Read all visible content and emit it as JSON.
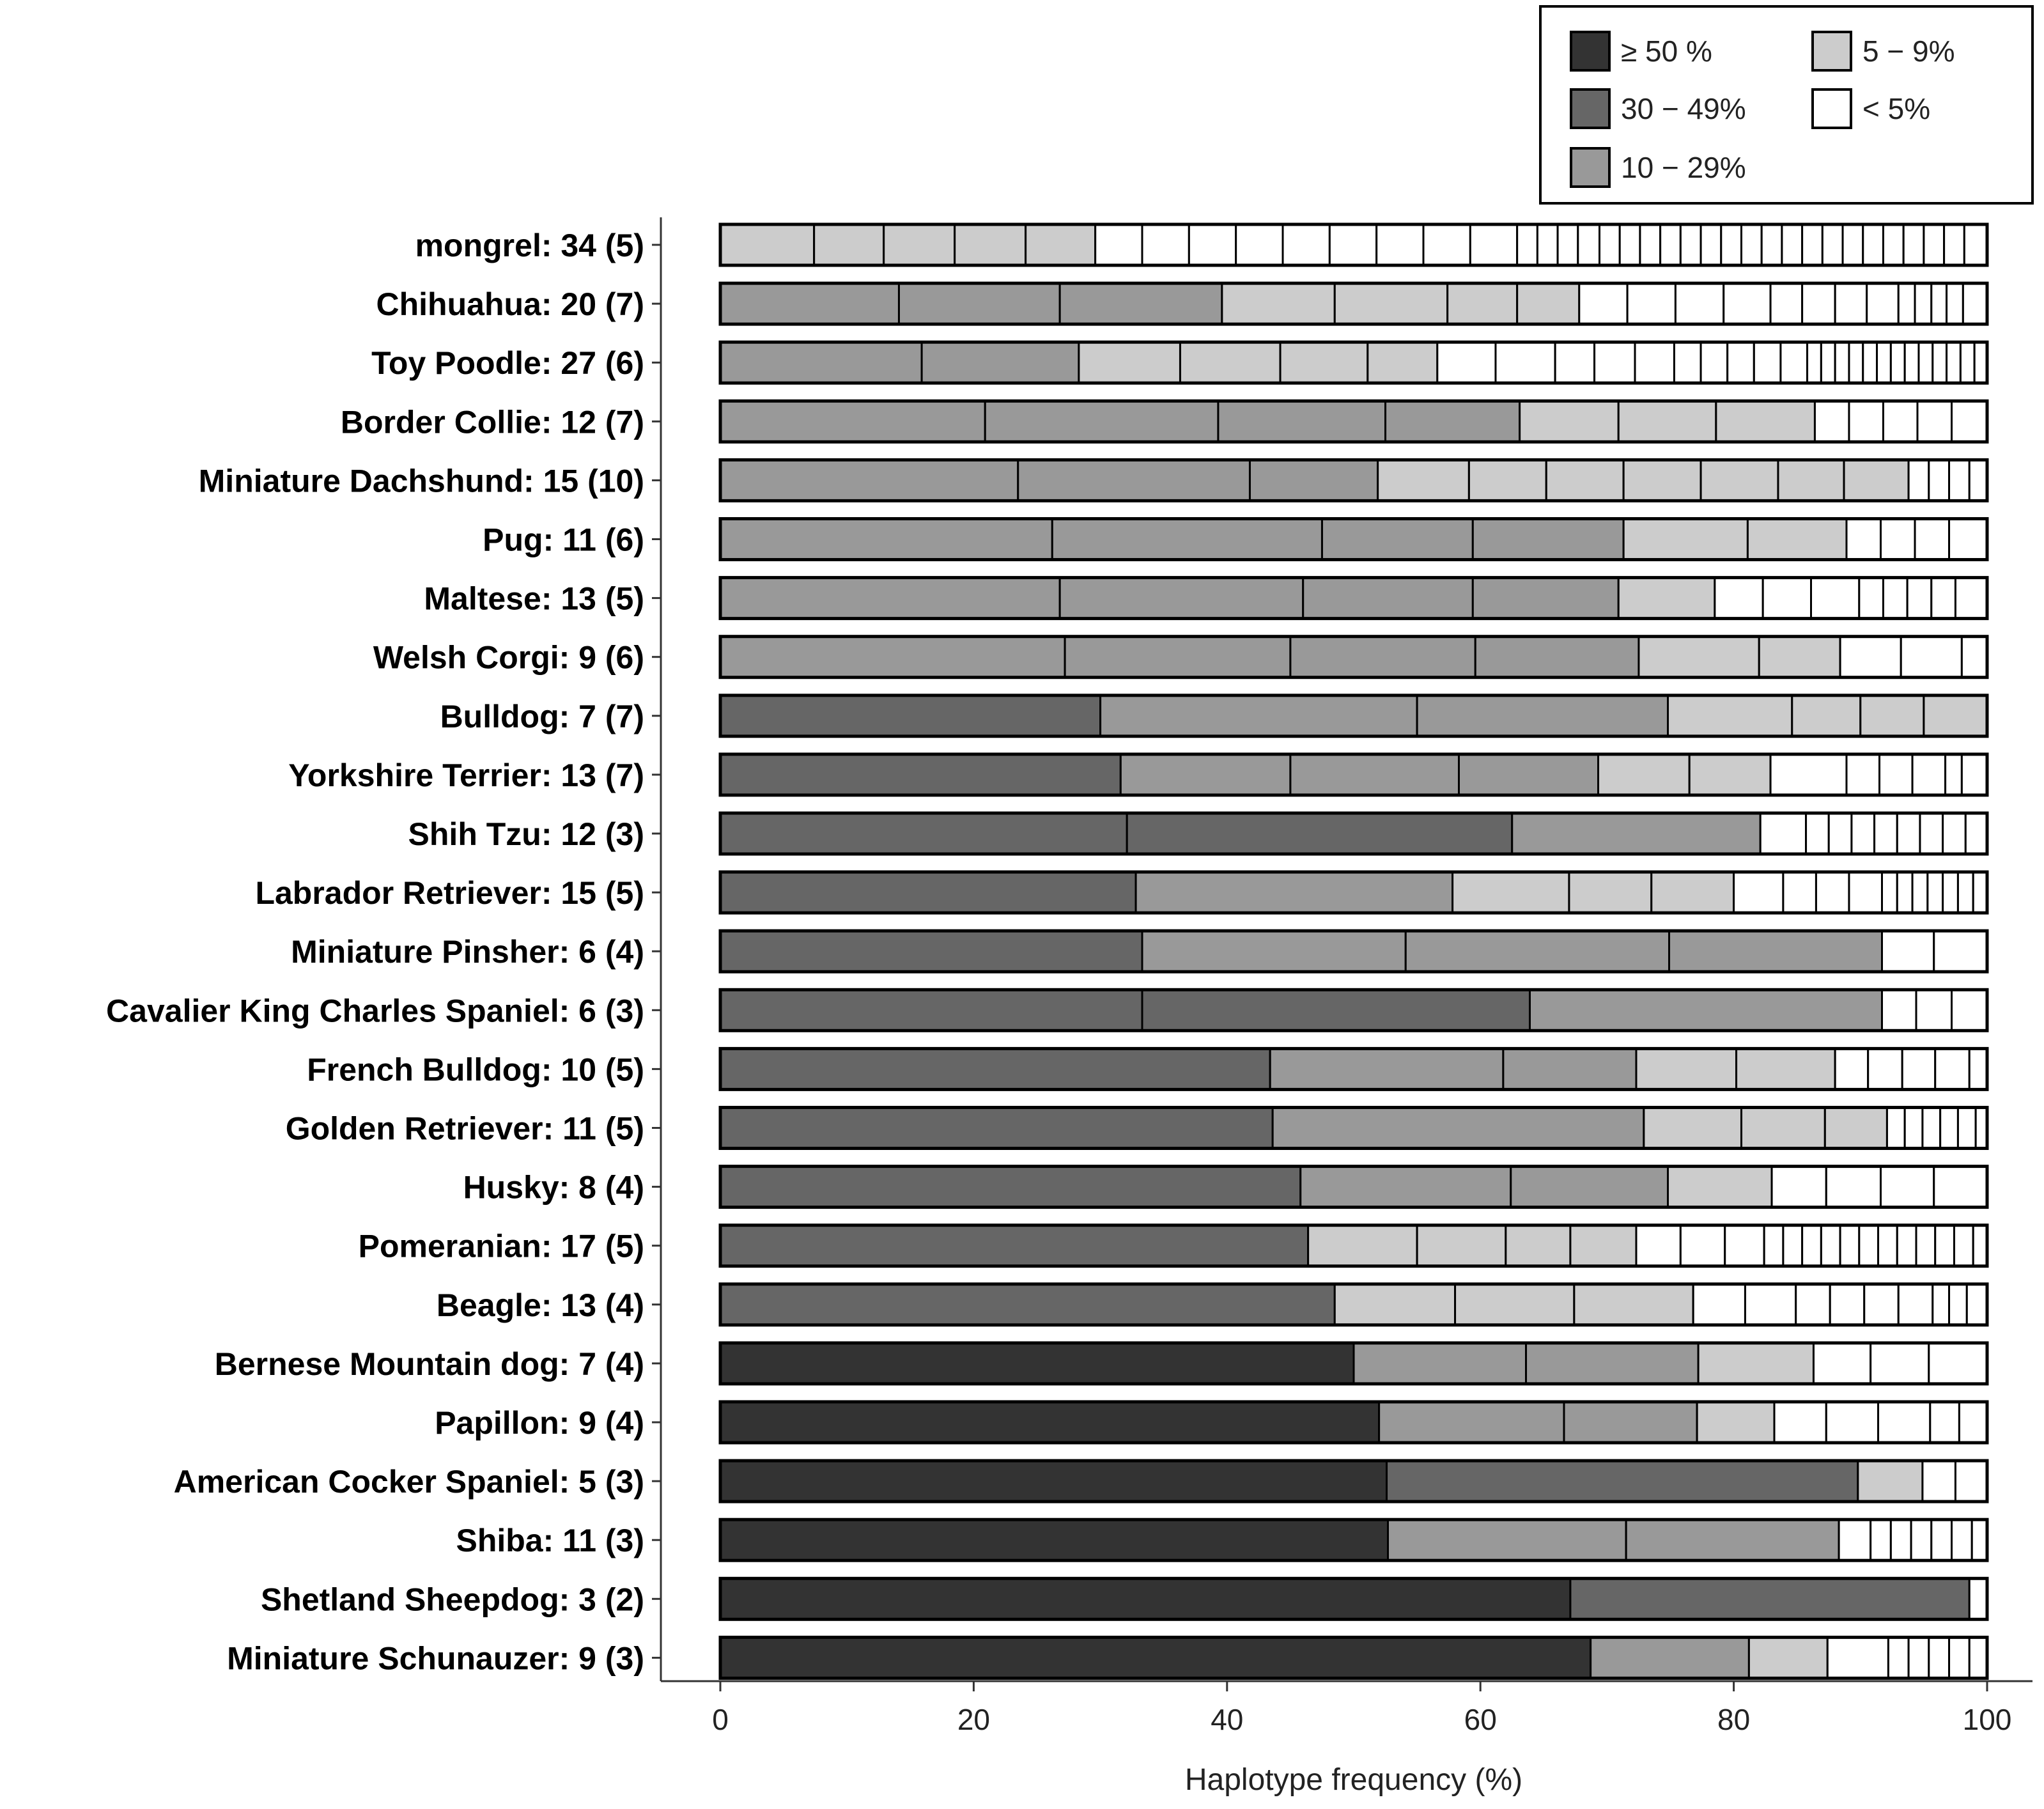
{
  "chart_data": {
    "type": "bar",
    "orientation": "horizontal",
    "stacked": true,
    "xlabel": "Haplotype frequency (%)",
    "xlim": [
      0,
      100
    ],
    "xticks": [
      0,
      20,
      40,
      60,
      80,
      100
    ],
    "legend_position": "top-right",
    "colors": {
      "c50": "#333333",
      "c30": "#666666",
      "c10": "#999999",
      "c5": "#cccccc",
      "lt5": "#ffffff"
    },
    "legend": [
      {
        "key": "c50",
        "label": "≥ 50 %"
      },
      {
        "key": "c30",
        "label": "30 − 49%"
      },
      {
        "key": "c10",
        "label": "10 − 29%"
      },
      {
        "key": "c5",
        "label": "5 − 9%"
      },
      {
        "key": "lt5",
        "label": "< 5%"
      }
    ],
    "categories": [
      "mongrel: 34 (5)",
      "Chihuahua: 20 (7)",
      "Toy Poodle: 27 (6)",
      "Border Collie: 12 (7)",
      "Miniature Dachshund: 15 (10)",
      "Pug: 11 (6)",
      "Maltese: 13 (5)",
      "Welsh Corgi: 9 (6)",
      "Bulldog: 7 (7)",
      "Yorkshire Terrier: 13 (7)",
      "Shih Tzu: 12 (3)",
      "Labrador Retriever: 15 (5)",
      "Miniature Pinsher: 6 (4)",
      "Cavalier King Charles Spaniel: 6 (3)",
      "French Bulldog: 10 (5)",
      "Golden Retriever: 11 (5)",
      "Husky: 8 (4)",
      "Pomeranian: 17 (5)",
      "Beagle: 13 (4)",
      "Bernese Mountain dog: 7 (4)",
      "Papillon: 9 (4)",
      "American Cocker Spaniel: 5 (3)",
      "Shiba: 11 (3)",
      "Shetland Sheepdog: 3 (2)",
      "Miniature Schunauzer: 9 (3)"
    ],
    "boundaries": [
      [
        7.4,
        12.9,
        18.5,
        24.1,
        29.6,
        33.3,
        37.0,
        40.7,
        44.4,
        48.1,
        51.8,
        55.5,
        59.2,
        62.9,
        64.5,
        66.1,
        67.7,
        69.4,
        71.0,
        72.6,
        74.2,
        75.8,
        77.4,
        79.0,
        80.6,
        82.2,
        83.8,
        85.4,
        87.0,
        88.6,
        90.2,
        91.8,
        93.4,
        95.0,
        96.6,
        98.2
      ],
      [
        14.1,
        26.8,
        39.6,
        48.5,
        57.4,
        62.9,
        67.8,
        71.6,
        75.4,
        79.2,
        82.9,
        85.4,
        88.0,
        90.5,
        93.0,
        94.3,
        95.6,
        96.8,
        98.1
      ],
      [
        15.9,
        28.3,
        36.3,
        44.2,
        51.1,
        56.6,
        61.2,
        65.9,
        69.0,
        72.2,
        75.3,
        77.4,
        79.5,
        81.6,
        83.7,
        85.8,
        86.9,
        88.0,
        89.1,
        90.2,
        91.3,
        92.4,
        93.5,
        94.6,
        95.7,
        96.8,
        97.9,
        99.0
      ],
      [
        20.9,
        39.3,
        52.5,
        63.1,
        70.9,
        78.6,
        86.4,
        89.1,
        91.8,
        94.5,
        97.2
      ],
      [
        23.5,
        41.8,
        51.9,
        59.1,
        65.2,
        71.3,
        77.4,
        83.5,
        88.7,
        93.8,
        95.4,
        97.0,
        98.6
      ],
      [
        26.2,
        47.5,
        59.4,
        71.3,
        81.1,
        88.9,
        91.6,
        94.3,
        97.0
      ],
      [
        26.8,
        46.0,
        59.4,
        70.9,
        78.5,
        82.3,
        86.1,
        89.9,
        91.8,
        93.7,
        95.6,
        97.5
      ],
      [
        27.2,
        45.0,
        59.6,
        72.5,
        82.0,
        88.4,
        93.2,
        98.0
      ],
      [
        30.0,
        55.0,
        74.8,
        84.6,
        90.0,
        95.0
      ],
      [
        31.6,
        45.0,
        58.3,
        69.3,
        76.5,
        82.9,
        88.9,
        91.5,
        94.1,
        96.7,
        98.0
      ],
      [
        32.1,
        62.5,
        82.1,
        85.7,
        87.5,
        89.3,
        91.1,
        92.9,
        94.7,
        96.5,
        98.3
      ],
      [
        32.8,
        57.8,
        67.0,
        73.5,
        80.0,
        83.9,
        86.5,
        89.1,
        91.7,
        92.9,
        94.1,
        95.3,
        96.5,
        97.7,
        98.9
      ],
      [
        33.3,
        54.1,
        74.9,
        91.7,
        95.8
      ],
      [
        33.3,
        63.9,
        91.7,
        94.4,
        97.2
      ],
      [
        43.4,
        61.8,
        72.3,
        80.2,
        88.0,
        90.6,
        93.3,
        95.9,
        98.6
      ],
      [
        43.6,
        72.9,
        80.6,
        87.2,
        92.1,
        93.5,
        94.9,
        96.3,
        97.7,
        99.1
      ],
      [
        45.8,
        62.4,
        74.8,
        83.0,
        87.3,
        91.6,
        95.8
      ],
      [
        46.4,
        55.0,
        62.0,
        67.1,
        72.3,
        75.8,
        79.3,
        82.4,
        83.9,
        85.4,
        86.9,
        88.4,
        89.9,
        91.4,
        92.9,
        94.4,
        95.9,
        97.4,
        98.9
      ],
      [
        48.5,
        58.0,
        67.4,
        76.8,
        80.9,
        84.9,
        87.6,
        90.3,
        93.0,
        95.7,
        97.0,
        98.4
      ],
      [
        50.0,
        63.6,
        77.2,
        86.3,
        90.8,
        95.4
      ],
      [
        52.0,
        66.6,
        77.1,
        83.2,
        87.3,
        91.4,
        95.5,
        97.8
      ],
      [
        52.6,
        89.8,
        94.9,
        97.5
      ],
      [
        52.7,
        71.5,
        88.3,
        90.8,
        92.4,
        94.0,
        95.6,
        97.2,
        98.8
      ],
      [
        67.1,
        98.6
      ],
      [
        68.7,
        81.2,
        87.4,
        92.2,
        93.8,
        95.4,
        97.0,
        98.6
      ]
    ],
    "segment_colors": [
      [
        "c5",
        "c5",
        "c5",
        "c5",
        "c5",
        "lt5",
        "lt5",
        "lt5",
        "lt5",
        "lt5",
        "lt5",
        "lt5",
        "lt5",
        "lt5",
        "lt5",
        "lt5",
        "lt5",
        "lt5",
        "lt5",
        "lt5",
        "lt5",
        "lt5",
        "lt5",
        "lt5",
        "lt5",
        "lt5",
        "lt5",
        "lt5",
        "lt5",
        "lt5",
        "lt5",
        "lt5",
        "lt5",
        "lt5",
        "lt5",
        "lt5",
        "lt5"
      ],
      [
        "c10",
        "c10",
        "c10",
        "c5",
        "c5",
        "c5",
        "c5",
        "lt5",
        "lt5",
        "lt5",
        "lt5",
        "lt5",
        "lt5",
        "lt5",
        "lt5",
        "lt5",
        "lt5",
        "lt5",
        "lt5",
        "lt5"
      ],
      [
        "c10",
        "c10",
        "c5",
        "c5",
        "c5",
        "c5",
        "lt5",
        "lt5",
        "lt5",
        "lt5",
        "lt5",
        "lt5",
        "lt5",
        "lt5",
        "lt5",
        "lt5",
        "lt5",
        "lt5",
        "lt5",
        "lt5",
        "lt5",
        "lt5",
        "lt5",
        "lt5",
        "lt5",
        "lt5",
        "lt5",
        "lt5",
        "lt5"
      ],
      [
        "c10",
        "c10",
        "c10",
        "c10",
        "c5",
        "c5",
        "c5",
        "lt5",
        "lt5",
        "lt5",
        "lt5",
        "lt5"
      ],
      [
        "c10",
        "c10",
        "c10",
        "c5",
        "c5",
        "c5",
        "c5",
        "c5",
        "c5",
        "c5",
        "lt5",
        "lt5",
        "lt5",
        "lt5"
      ],
      [
        "c10",
        "c10",
        "c10",
        "c10",
        "c5",
        "c5",
        "lt5",
        "lt5",
        "lt5",
        "lt5"
      ],
      [
        "c10",
        "c10",
        "c10",
        "c10",
        "c5",
        "lt5",
        "lt5",
        "lt5",
        "lt5",
        "lt5",
        "lt5",
        "lt5",
        "lt5"
      ],
      [
        "c10",
        "c10",
        "c10",
        "c10",
        "c5",
        "c5",
        "lt5",
        "lt5",
        "lt5"
      ],
      [
        "c30",
        "c10",
        "c10",
        "c5",
        "c5",
        "c5",
        "c5"
      ],
      [
        "c30",
        "c10",
        "c10",
        "c10",
        "c5",
        "c5",
        "lt5",
        "lt5",
        "lt5",
        "lt5",
        "lt5",
        "lt5"
      ],
      [
        "c30",
        "c30",
        "c10",
        "lt5",
        "lt5",
        "lt5",
        "lt5",
        "lt5",
        "lt5",
        "lt5",
        "lt5",
        "lt5"
      ],
      [
        "c30",
        "c10",
        "c5",
        "c5",
        "c5",
        "lt5",
        "lt5",
        "lt5",
        "lt5",
        "lt5",
        "lt5",
        "lt5",
        "lt5",
        "lt5",
        "lt5",
        "lt5"
      ],
      [
        "c30",
        "c10",
        "c10",
        "c10",
        "lt5",
        "lt5"
      ],
      [
        "c30",
        "c30",
        "c10",
        "lt5",
        "lt5",
        "lt5"
      ],
      [
        "c30",
        "c10",
        "c10",
        "c5",
        "c5",
        "lt5",
        "lt5",
        "lt5",
        "lt5",
        "lt5"
      ],
      [
        "c30",
        "c10",
        "c5",
        "c5",
        "c5",
        "lt5",
        "lt5",
        "lt5",
        "lt5",
        "lt5",
        "lt5"
      ],
      [
        "c30",
        "c10",
        "c10",
        "c5",
        "lt5",
        "lt5",
        "lt5",
        "lt5"
      ],
      [
        "c30",
        "c5",
        "c5",
        "c5",
        "c5",
        "lt5",
        "lt5",
        "lt5",
        "lt5",
        "lt5",
        "lt5",
        "lt5",
        "lt5",
        "lt5",
        "lt5",
        "lt5",
        "lt5",
        "lt5",
        "lt5",
        "lt5"
      ],
      [
        "c30",
        "c5",
        "c5",
        "c5",
        "lt5",
        "lt5",
        "lt5",
        "lt5",
        "lt5",
        "lt5",
        "lt5",
        "lt5",
        "lt5"
      ],
      [
        "c50",
        "c10",
        "c10",
        "c5",
        "lt5",
        "lt5",
        "lt5"
      ],
      [
        "c50",
        "c10",
        "c10",
        "c5",
        "lt5",
        "lt5",
        "lt5",
        "lt5",
        "lt5"
      ],
      [
        "c50",
        "c30",
        "c5",
        "lt5",
        "lt5"
      ],
      [
        "c50",
        "c10",
        "c10",
        "lt5",
        "lt5",
        "lt5",
        "lt5",
        "lt5",
        "lt5",
        "lt5"
      ],
      [
        "c50",
        "c30",
        "lt5"
      ],
      [
        "c50",
        "c10",
        "c5",
        "lt5",
        "lt5",
        "lt5",
        "lt5",
        "lt5",
        "lt5"
      ]
    ]
  }
}
